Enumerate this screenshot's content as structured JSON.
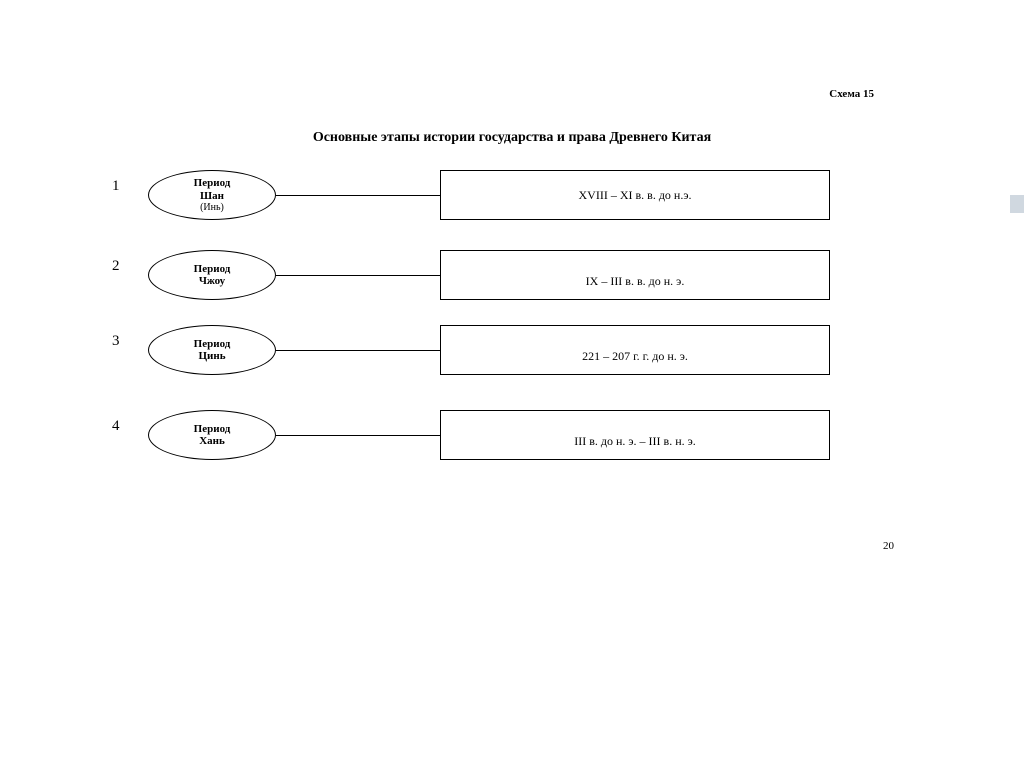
{
  "schema_label": "Схема 15",
  "title": "Основные этапы истории государства и права Древнего Китая",
  "page_number": "20",
  "layout": {
    "row_tops": [
      170,
      250,
      325,
      410
    ],
    "page_num_top": 540,
    "ellipse_border_color": "#000000",
    "rect_border_color": "#000000",
    "connector_color": "#000000",
    "background": "#ffffff"
  },
  "rows": [
    {
      "num": "1",
      "ellipse": {
        "line1": "Период",
        "line2": "Шан",
        "line3": "(Инь)"
      },
      "rect_text": "XVIII – XI в. в. до н.э.",
      "rect_align_lower": false
    },
    {
      "num": "2",
      "ellipse": {
        "line1": "Период",
        "line2": "Чжоу",
        "line3": ""
      },
      "rect_text": "IX – III в. в. до н. э.",
      "rect_align_lower": true
    },
    {
      "num": "3",
      "ellipse": {
        "line1": "Период",
        "line2": "Цинь",
        "line3": ""
      },
      "rect_text": "221 – 207 г. г. до н. э.",
      "rect_align_lower": true
    },
    {
      "num": "4",
      "ellipse": {
        "line1": "Период",
        "line2": "Хань",
        "line3": ""
      },
      "rect_text": "III в. до н. э. – III в. н. э.",
      "rect_align_lower": true
    }
  ]
}
